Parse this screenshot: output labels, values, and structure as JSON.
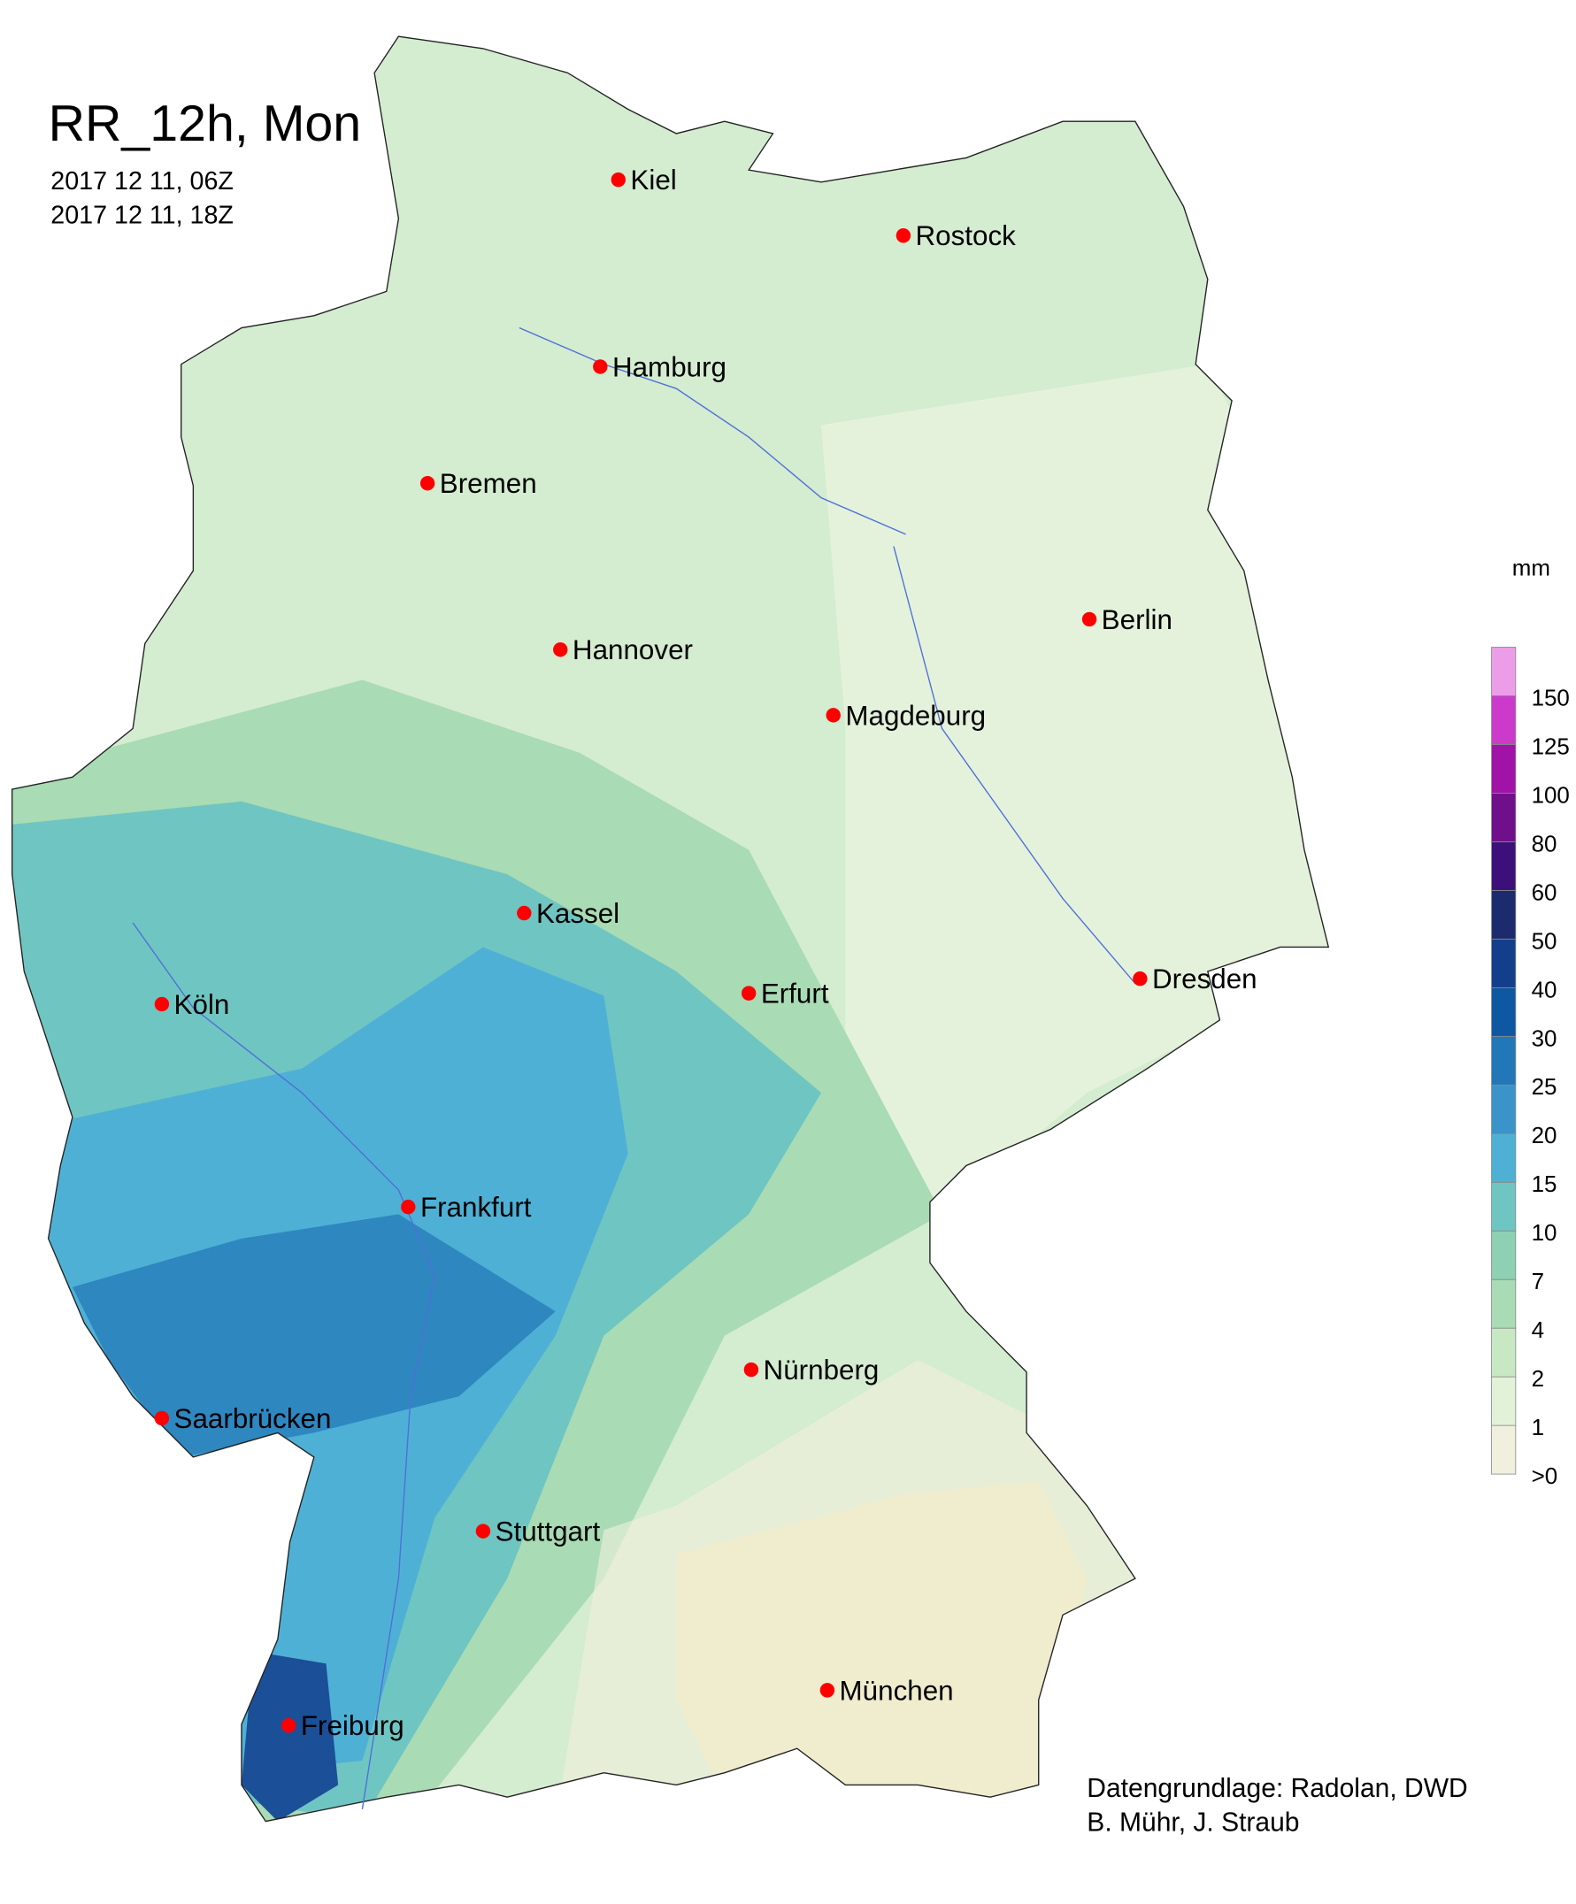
{
  "header": {
    "title": "RR_12h, Mon",
    "lines": [
      "2017 12 11, 06Z",
      "2017 12 11, 18Z"
    ]
  },
  "cities": [
    "Kiel",
    "Rostock",
    "Hamburg",
    "Bremen",
    "Berlin",
    "Hannover",
    "Magdeburg",
    "Kassel",
    "Köln",
    "Erfurt",
    "Dresden",
    "Frankfurt",
    "Nürnberg",
    "Saarbrücken",
    "Stuttgart",
    "München",
    "Freiburg"
  ],
  "legend": {
    "unit": "mm",
    "labels": [
      ">0",
      "1",
      "2",
      "4",
      "7",
      "10",
      "15",
      "20",
      "25",
      "30",
      "40",
      "50",
      "60",
      "80",
      "100",
      "125",
      "150"
    ],
    "colors": [
      "#f1f0de",
      "#e2f2d8",
      "#c8e8c4",
      "#a9dbb4",
      "#8ed0b3",
      "#6fc5c2",
      "#4fb0d6",
      "#3a94c9",
      "#2277b8",
      "#0e57a2",
      "#133f8a",
      "#1c2b6e",
      "#3d0f7a",
      "#700f8a",
      "#a012a8",
      "#cc3acc",
      "#ec9de8"
    ]
  },
  "credits": [
    "Datengrundlage: Radolan, DWD",
    "B. Mühr, J. Straub"
  ]
}
